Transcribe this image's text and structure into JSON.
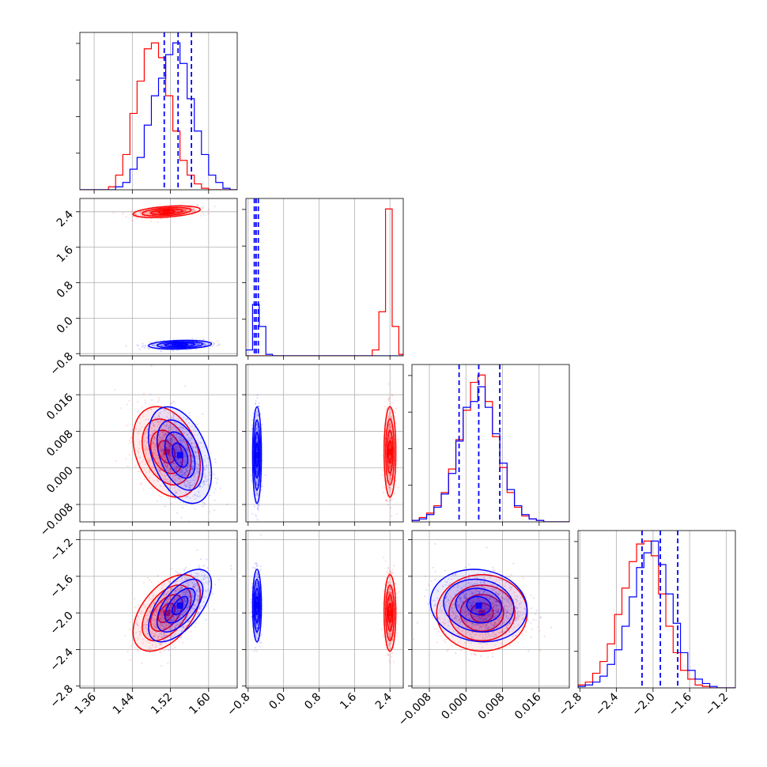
{
  "chart_data": {
    "type": "corner",
    "grid": true,
    "legend": "none",
    "colors": {
      "series_a": "#ff0000",
      "series_b": "#0000ff"
    },
    "series": [
      {
        "color": "#ff0000",
        "means": [
          1.512,
          2.4,
          0.0035,
          -2.0
        ],
        "sds": [
          0.032,
          0.06,
          0.0045,
          0.19
        ],
        "rho_01": 0.4,
        "rho_02": -0.3,
        "rho_03": 0.5,
        "rho_23": 0.0
      },
      {
        "color": "#0000ff",
        "means": [
          1.54,
          -0.6,
          0.0028,
          -1.92
        ],
        "sds": [
          0.03,
          0.045,
          0.0048,
          0.18
        ],
        "rho_01": 0.2,
        "rho_02": -0.4,
        "rho_03": 0.6,
        "rho_23": -0.1
      }
    ],
    "quantile_lines": {
      "color": "#0000ff",
      "values": [
        [
          1.507,
          1.536,
          1.564
        ],
        [
          -0.66,
          -0.62,
          -0.57
        ],
        [
          -0.0015,
          0.0028,
          0.0074
        ],
        [
          -2.12,
          -1.92,
          -1.73
        ]
      ]
    },
    "axes": [
      {
        "min": 1.33,
        "max": 1.66,
        "ticks": [
          1.36,
          1.44,
          1.52,
          1.6
        ],
        "tick_labels": [
          "1.36",
          "1.44",
          "1.52",
          "1.60"
        ]
      },
      {
        "min": -0.85,
        "max": 2.7,
        "ticks": [
          -0.8,
          0.0,
          0.8,
          1.6,
          2.4
        ],
        "tick_labels": [
          "−0.8",
          "0.0",
          "0.8",
          "1.6",
          "2.4"
        ]
      },
      {
        "min": -0.0118,
        "max": 0.0226,
        "ticks": [
          -0.008,
          0.0,
          0.008,
          0.016
        ],
        "tick_labels": [
          "−0.008",
          "0.000",
          "0.008",
          "0.016"
        ]
      },
      {
        "min": -2.82,
        "max": -1.1,
        "ticks": [
          -2.8,
          -2.4,
          -2.0,
          -1.6,
          -1.2
        ],
        "tick_labels": [
          "−2.8",
          "−2.4",
          "−2.0",
          "−1.6",
          "−1.2"
        ]
      }
    ],
    "histograms": [
      {
        "bin_edges": [
          1.33,
          1.345,
          1.36,
          1.375,
          1.39,
          1.405,
          1.42,
          1.435,
          1.45,
          1.465,
          1.48,
          1.495,
          1.51,
          1.525,
          1.54,
          1.555,
          1.57,
          1.585,
          1.6,
          1.615,
          1.63,
          1.645,
          1.66
        ],
        "series_a": [
          0,
          0,
          0,
          0,
          2,
          10,
          24,
          52,
          74,
          96,
          100,
          90,
          64,
          40,
          20,
          10,
          4,
          1,
          0,
          0,
          0,
          0
        ],
        "series_b": [
          0,
          0,
          0,
          0,
          0,
          2,
          5,
          14,
          22,
          44,
          64,
          76,
          92,
          100,
          86,
          62,
          40,
          24,
          10,
          5,
          1,
          0
        ]
      },
      {
        "bin_edges": [
          -0.85,
          -0.7,
          -0.55,
          -0.4,
          -0.25,
          -0.1,
          0.05,
          0.2,
          0.35,
          0.5,
          0.65,
          0.8,
          0.95,
          1.1,
          1.25,
          1.4,
          1.55,
          1.7,
          1.85,
          2.0,
          2.15,
          2.3,
          2.45,
          2.6,
          2.7
        ],
        "series_a": [
          0,
          0,
          0,
          0,
          0,
          0,
          0,
          0,
          0,
          0,
          0,
          0,
          0,
          0,
          0,
          0,
          0,
          0,
          0,
          4,
          30,
          100,
          20,
          1
        ],
        "series_b": [
          4,
          35,
          20,
          1,
          0,
          0,
          0,
          0,
          0,
          0,
          0,
          0,
          0,
          0,
          0,
          0,
          0,
          0,
          0,
          0,
          0,
          0,
          0,
          0
        ]
      },
      {
        "bin_edges": [
          -0.0118,
          -0.0102,
          -0.0086,
          -0.007,
          -0.0054,
          -0.0038,
          -0.0022,
          -0.0006,
          0.001,
          0.0026,
          0.0042,
          0.0058,
          0.0074,
          0.009,
          0.0106,
          0.0122,
          0.0138,
          0.0154,
          0.017,
          0.0186,
          0.0202,
          0.0218,
          0.0226
        ],
        "series_a": [
          1,
          3,
          6,
          11,
          20,
          36,
          56,
          76,
          95,
          100,
          82,
          58,
          37,
          20,
          10,
          4,
          2,
          1,
          0,
          0,
          0,
          0
        ],
        "series_b": [
          1,
          2,
          5,
          10,
          19,
          33,
          55,
          78,
          82,
          92,
          78,
          60,
          40,
          22,
          11,
          5,
          2,
          1,
          0,
          0,
          0,
          0
        ]
      },
      {
        "bin_edges": [
          -2.82,
          -2.74,
          -2.66,
          -2.58,
          -2.5,
          -2.42,
          -2.34,
          -2.26,
          -2.18,
          -2.1,
          -2.02,
          -1.94,
          -1.86,
          -1.78,
          -1.7,
          -1.62,
          -1.54,
          -1.46,
          -1.38,
          -1.3,
          -1.22,
          -1.14,
          -1.1
        ],
        "series_a": [
          2,
          4,
          10,
          18,
          30,
          50,
          68,
          86,
          98,
          100,
          90,
          64,
          42,
          24,
          12,
          6,
          2,
          1,
          0,
          0,
          0,
          0
        ],
        "series_b": [
          1,
          2,
          4,
          8,
          16,
          26,
          42,
          62,
          82,
          92,
          100,
          84,
          64,
          44,
          24,
          12,
          6,
          3,
          1,
          0,
          0,
          0
        ]
      }
    ]
  }
}
